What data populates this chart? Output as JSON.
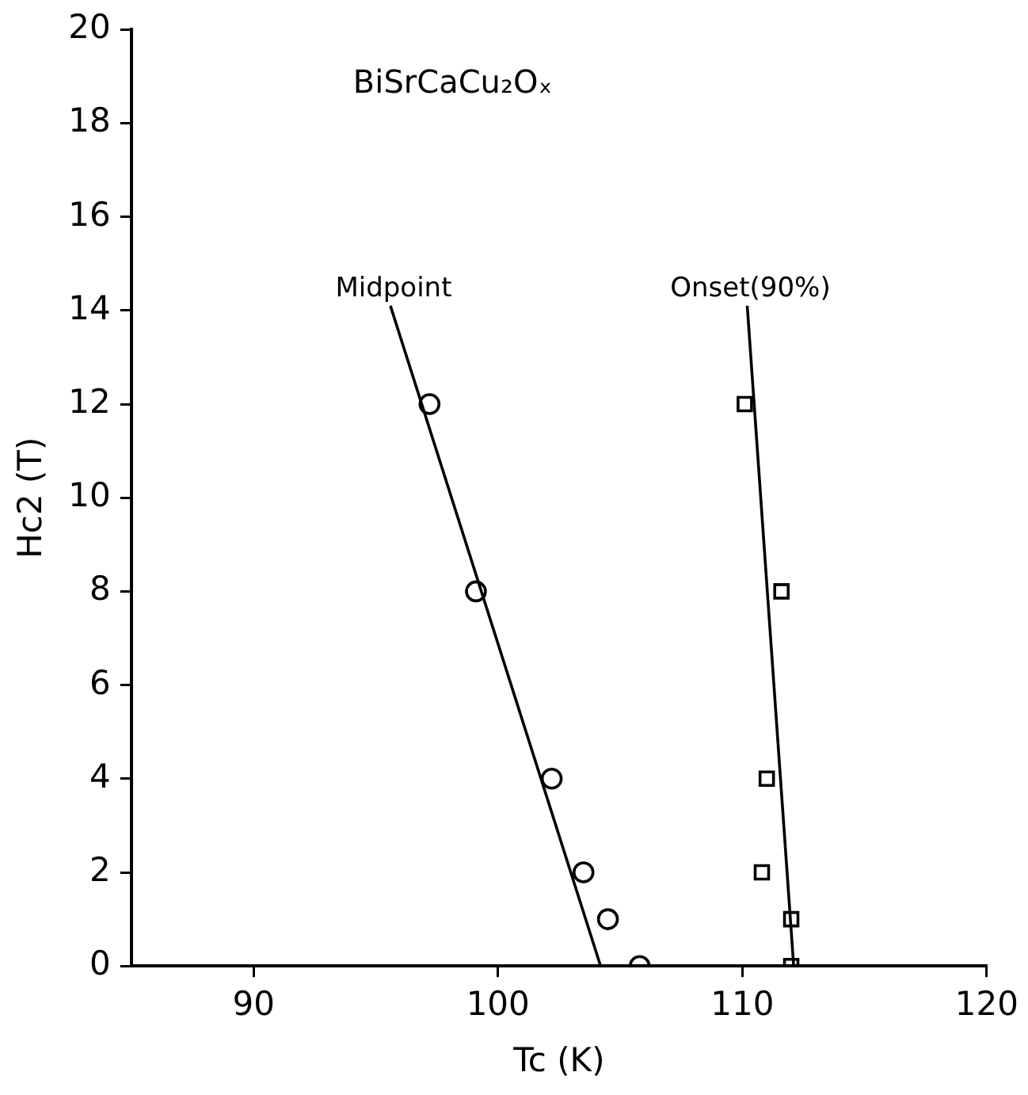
{
  "chart_data": {
    "type": "scatter",
    "xlabel": "Tc (K)",
    "ylabel": "Hc2 (T)",
    "annotations": [
      "BiSrCaCu₂Oₓ"
    ],
    "xlim": [
      85,
      120
    ],
    "xticks": [
      90,
      100,
      110,
      120
    ],
    "ylim": [
      0,
      20
    ],
    "yticks": [
      0,
      2,
      4,
      6,
      8,
      10,
      12,
      14,
      16,
      18,
      20
    ],
    "grid": false,
    "legend": false,
    "series": [
      {
        "marker": "circle",
        "color": "#000000",
        "x": [
          97.2,
          99.1,
          102.2,
          103.5,
          104.5,
          105.8
        ],
        "values": [
          12,
          8,
          4,
          2,
          1,
          0
        ]
      },
      {
        "marker": "square",
        "color": "#000000",
        "x": [
          110.1,
          111.6,
          111.0,
          110.8,
          112.0,
          112.0
        ],
        "values": [
          12,
          8,
          4,
          2,
          1,
          0
        ]
      },
      {
        "name": "Midpoint",
        "type": "line",
        "marker": "none",
        "line_style": "solid",
        "color": "#000000",
        "x": [
          95.6,
          104.2
        ],
        "values": [
          14.1,
          0
        ]
      },
      {
        "name": "Onset(90%)",
        "type": "line",
        "marker": "none",
        "line_style": "solid",
        "color": "#000000",
        "x": [
          110.2,
          112.1
        ],
        "values": [
          14.1,
          0
        ]
      }
    ]
  }
}
